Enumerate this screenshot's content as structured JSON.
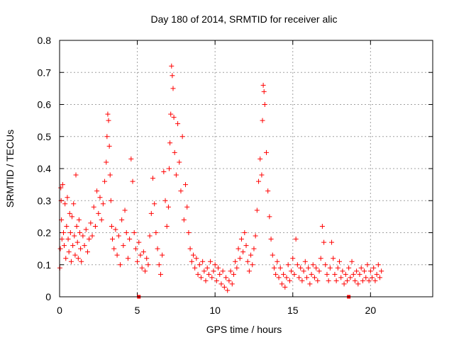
{
  "chart_data": {
    "type": "scatter",
    "title": "Day 180 of 2014, SRMTID for receiver alic",
    "xlabel": "GPS time / hours",
    "ylabel": "SRMTID / TECUs",
    "xlim": [
      0,
      24
    ],
    "ylim": [
      0,
      0.8
    ],
    "xticks": [
      "0",
      "5",
      "10",
      "15",
      "20"
    ],
    "yticks": [
      "0",
      "0.1",
      "0.2",
      "0.3",
      "0.4",
      "0.5",
      "0.6",
      "0.7",
      "0.8"
    ],
    "grid": true,
    "marker": "+",
    "color": "#ff0000",
    "markers_on_axis": [
      5.1,
      18.6
    ],
    "series": [
      {
        "name": "SRMTID",
        "points": [
          [
            0.02,
            0.09
          ],
          [
            0.05,
            0.15
          ],
          [
            0.08,
            0.34
          ],
          [
            0.1,
            0.3
          ],
          [
            0.12,
            0.24
          ],
          [
            0.15,
            0.18
          ],
          [
            0.2,
            0.35
          ],
          [
            0.25,
            0.2
          ],
          [
            0.3,
            0.16
          ],
          [
            0.35,
            0.29
          ],
          [
            0.4,
            0.12
          ],
          [
            0.45,
            0.22
          ],
          [
            0.5,
            0.31
          ],
          [
            0.55,
            0.18
          ],
          [
            0.6,
            0.14
          ],
          [
            0.65,
            0.26
          ],
          [
            0.7,
            0.2
          ],
          [
            0.75,
            0.11
          ],
          [
            0.8,
            0.25
          ],
          [
            0.85,
            0.16
          ],
          [
            0.9,
            0.29
          ],
          [
            0.95,
            0.19
          ],
          [
            1.0,
            0.13
          ],
          [
            1.05,
            0.38
          ],
          [
            1.1,
            0.22
          ],
          [
            1.15,
            0.17
          ],
          [
            1.2,
            0.12
          ],
          [
            1.25,
            0.24
          ],
          [
            1.3,
            0.2
          ],
          [
            1.35,
            0.15
          ],
          [
            1.4,
            0.11
          ],
          [
            1.5,
            0.19
          ],
          [
            1.6,
            0.16
          ],
          [
            1.7,
            0.21
          ],
          [
            1.8,
            0.14
          ],
          [
            1.9,
            0.18
          ],
          [
            2.0,
            0.23
          ],
          [
            2.1,
            0.19
          ],
          [
            2.2,
            0.28
          ],
          [
            2.3,
            0.22
          ],
          [
            2.4,
            0.33
          ],
          [
            2.5,
            0.26
          ],
          [
            2.6,
            0.31
          ],
          [
            2.7,
            0.24
          ],
          [
            2.8,
            0.29
          ],
          [
            2.9,
            0.36
          ],
          [
            3.0,
            0.42
          ],
          [
            3.05,
            0.5
          ],
          [
            3.1,
            0.57
          ],
          [
            3.15,
            0.55
          ],
          [
            3.2,
            0.47
          ],
          [
            3.25,
            0.38
          ],
          [
            3.3,
            0.3
          ],
          [
            3.35,
            0.22
          ],
          [
            3.4,
            0.18
          ],
          [
            3.5,
            0.15
          ],
          [
            3.6,
            0.21
          ],
          [
            3.7,
            0.13
          ],
          [
            3.8,
            0.19
          ],
          [
            3.9,
            0.1
          ],
          [
            4.0,
            0.24
          ],
          [
            4.1,
            0.16
          ],
          [
            4.2,
            0.27
          ],
          [
            4.3,
            0.2
          ],
          [
            4.4,
            0.12
          ],
          [
            4.5,
            0.18
          ],
          [
            4.6,
            0.43
          ],
          [
            4.7,
            0.36
          ],
          [
            4.8,
            0.2
          ],
          [
            4.9,
            0.15
          ],
          [
            5.0,
            0.11
          ],
          [
            5.1,
            0.17
          ],
          [
            5.2,
            0.13
          ],
          [
            5.3,
            0.09
          ],
          [
            5.4,
            0.14
          ],
          [
            5.5,
            0.08
          ],
          [
            5.6,
            0.12
          ],
          [
            5.7,
            0.1
          ],
          [
            5.8,
            0.19
          ],
          [
            5.9,
            0.26
          ],
          [
            6.0,
            0.37
          ],
          [
            6.1,
            0.29
          ],
          [
            6.2,
            0.2
          ],
          [
            6.3,
            0.15
          ],
          [
            6.4,
            0.1
          ],
          [
            6.5,
            0.07
          ],
          [
            6.6,
            0.13
          ],
          [
            6.7,
            0.39
          ],
          [
            6.8,
            0.3
          ],
          [
            6.9,
            0.22
          ],
          [
            7.0,
            0.28
          ],
          [
            7.05,
            0.4
          ],
          [
            7.1,
            0.48
          ],
          [
            7.15,
            0.57
          ],
          [
            7.2,
            0.72
          ],
          [
            7.25,
            0.69
          ],
          [
            7.3,
            0.65
          ],
          [
            7.35,
            0.56
          ],
          [
            7.4,
            0.45
          ],
          [
            7.5,
            0.38
          ],
          [
            7.6,
            0.54
          ],
          [
            7.7,
            0.42
          ],
          [
            7.8,
            0.33
          ],
          [
            7.9,
            0.5
          ],
          [
            8.0,
            0.24
          ],
          [
            8.1,
            0.35
          ],
          [
            8.2,
            0.28
          ],
          [
            8.3,
            0.2
          ],
          [
            8.4,
            0.15
          ],
          [
            8.5,
            0.11
          ],
          [
            8.6,
            0.13
          ],
          [
            8.7,
            0.09
          ],
          [
            8.8,
            0.12
          ],
          [
            8.9,
            0.07
          ],
          [
            9.0,
            0.1
          ],
          [
            9.1,
            0.06
          ],
          [
            9.2,
            0.11
          ],
          [
            9.3,
            0.08
          ],
          [
            9.4,
            0.05
          ],
          [
            9.5,
            0.09
          ],
          [
            9.6,
            0.07
          ],
          [
            9.7,
            0.11
          ],
          [
            9.8,
            0.06
          ],
          [
            9.9,
            0.08
          ],
          [
            10.0,
            0.1
          ],
          [
            10.1,
            0.05
          ],
          [
            10.2,
            0.09
          ],
          [
            10.3,
            0.07
          ],
          [
            10.4,
            0.04
          ],
          [
            10.5,
            0.08
          ],
          [
            10.6,
            0.03
          ],
          [
            10.7,
            0.06
          ],
          [
            10.8,
            0.02
          ],
          [
            10.9,
            0.05
          ],
          [
            11.0,
            0.08
          ],
          [
            11.1,
            0.04
          ],
          [
            11.2,
            0.07
          ],
          [
            11.3,
            0.11
          ],
          [
            11.4,
            0.09
          ],
          [
            11.5,
            0.15
          ],
          [
            11.6,
            0.12
          ],
          [
            11.7,
            0.18
          ],
          [
            11.8,
            0.14
          ],
          [
            11.9,
            0.2
          ],
          [
            12.0,
            0.16
          ],
          [
            12.1,
            0.11
          ],
          [
            12.2,
            0.08
          ],
          [
            12.3,
            0.13
          ],
          [
            12.4,
            0.1
          ],
          [
            12.5,
            0.15
          ],
          [
            12.6,
            0.19
          ],
          [
            12.7,
            0.27
          ],
          [
            12.8,
            0.36
          ],
          [
            12.9,
            0.43
          ],
          [
            13.0,
            0.38
          ],
          [
            13.05,
            0.55
          ],
          [
            13.1,
            0.66
          ],
          [
            13.15,
            0.64
          ],
          [
            13.2,
            0.6
          ],
          [
            13.3,
            0.45
          ],
          [
            13.4,
            0.33
          ],
          [
            13.5,
            0.25
          ],
          [
            13.6,
            0.18
          ],
          [
            13.7,
            0.13
          ],
          [
            13.8,
            0.09
          ],
          [
            13.9,
            0.07
          ],
          [
            14.0,
            0.11
          ],
          [
            14.1,
            0.06
          ],
          [
            14.2,
            0.09
          ],
          [
            14.3,
            0.04
          ],
          [
            14.4,
            0.07
          ],
          [
            14.5,
            0.03
          ],
          [
            14.6,
            0.06
          ],
          [
            14.7,
            0.1
          ],
          [
            14.8,
            0.05
          ],
          [
            14.9,
            0.08
          ],
          [
            15.0,
            0.12
          ],
          [
            15.1,
            0.07
          ],
          [
            15.2,
            0.18
          ],
          [
            15.3,
            0.1
          ],
          [
            15.4,
            0.06
          ],
          [
            15.5,
            0.09
          ],
          [
            15.6,
            0.05
          ],
          [
            15.7,
            0.08
          ],
          [
            15.8,
            0.11
          ],
          [
            15.9,
            0.06
          ],
          [
            16.0,
            0.09
          ],
          [
            16.1,
            0.04
          ],
          [
            16.2,
            0.07
          ],
          [
            16.3,
            0.1
          ],
          [
            16.4,
            0.06
          ],
          [
            16.5,
            0.09
          ],
          [
            16.6,
            0.05
          ],
          [
            16.7,
            0.08
          ],
          [
            16.8,
            0.12
          ],
          [
            16.9,
            0.22
          ],
          [
            17.0,
            0.17
          ],
          [
            17.1,
            0.1
          ],
          [
            17.2,
            0.07
          ],
          [
            17.3,
            0.05
          ],
          [
            17.4,
            0.09
          ],
          [
            17.5,
            0.17
          ],
          [
            17.6,
            0.12
          ],
          [
            17.7,
            0.07
          ],
          [
            17.8,
            0.05
          ],
          [
            17.9,
            0.09
          ],
          [
            18.0,
            0.11
          ],
          [
            18.1,
            0.06
          ],
          [
            18.2,
            0.08
          ],
          [
            18.3,
            0.04
          ],
          [
            18.4,
            0.07
          ],
          [
            18.5,
            0.05
          ],
          [
            18.6,
            0.09
          ],
          [
            18.7,
            0.06
          ],
          [
            18.8,
            0.11
          ],
          [
            18.9,
            0.07
          ],
          [
            19.0,
            0.05
          ],
          [
            19.1,
            0.08
          ],
          [
            19.2,
            0.04
          ],
          [
            19.3,
            0.07
          ],
          [
            19.4,
            0.09
          ],
          [
            19.5,
            0.05
          ],
          [
            19.6,
            0.08
          ],
          [
            19.7,
            0.06
          ],
          [
            19.8,
            0.1
          ],
          [
            19.9,
            0.05
          ],
          [
            20.0,
            0.08
          ],
          [
            20.1,
            0.06
          ],
          [
            20.2,
            0.09
          ],
          [
            20.3,
            0.05
          ],
          [
            20.4,
            0.07
          ],
          [
            20.5,
            0.1
          ],
          [
            20.6,
            0.06
          ],
          [
            20.7,
            0.08
          ]
        ]
      }
    ]
  }
}
